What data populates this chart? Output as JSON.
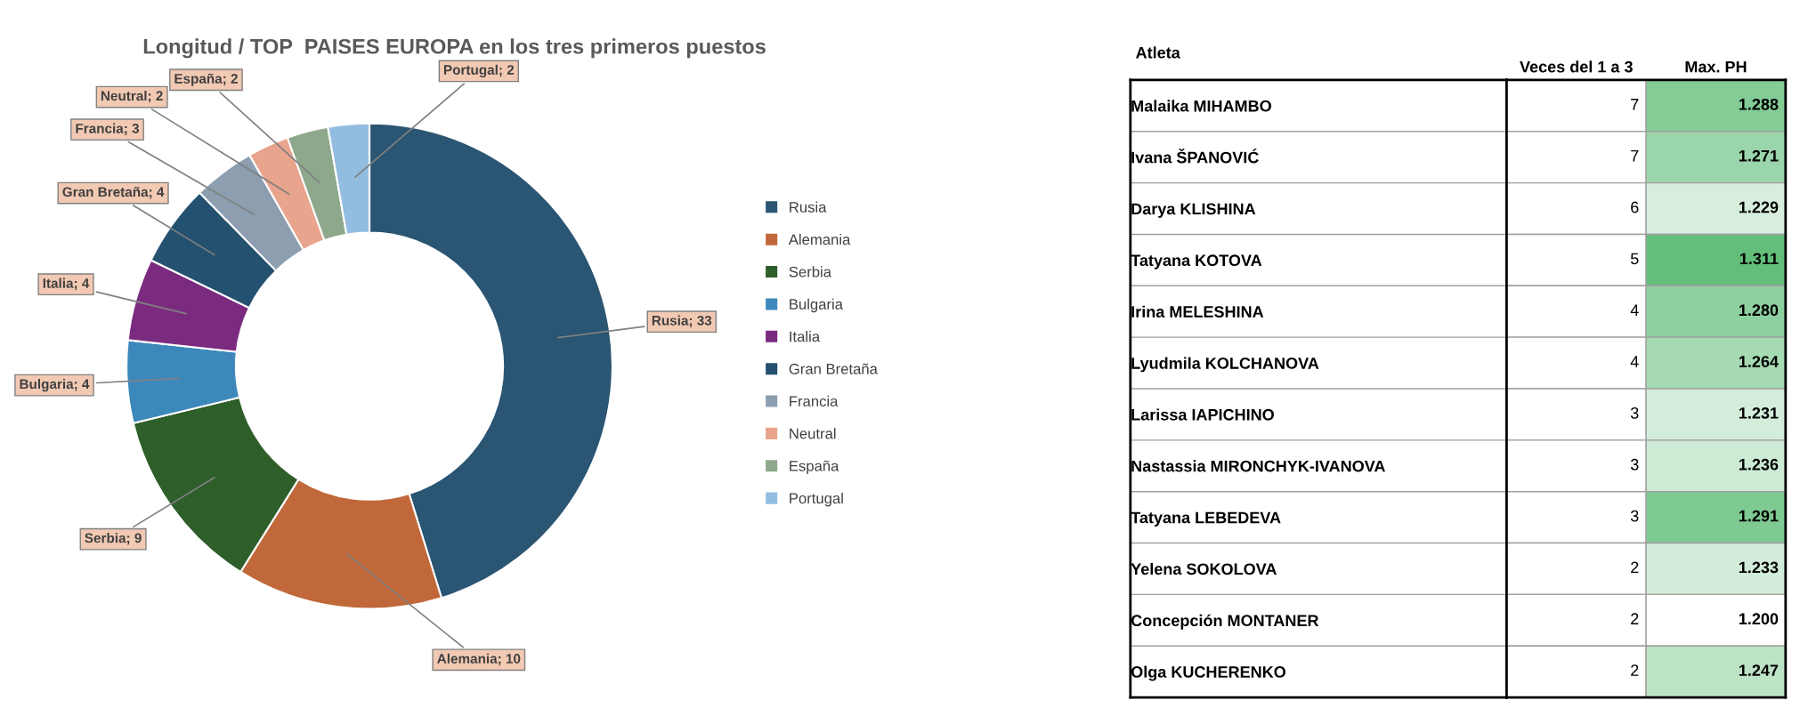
{
  "chart_data": [
    {
      "type": "donut",
      "title": "Longitud / TOP  PAISES EUROPA en los tres primeros puestos",
      "categories": [
        "Rusia",
        "Alemania",
        "Serbia",
        "Bulgaria",
        "Italia",
        "Gran Bretaña",
        "Francia",
        "Neutral",
        "España",
        "Portugal"
      ],
      "values": [
        33,
        10,
        9,
        4,
        4,
        4,
        3,
        2,
        2,
        2
      ],
      "colors": [
        "#2a5573",
        "#c0683a",
        "#2e5e29",
        "#3d88bb",
        "#7a2b80",
        "#255170",
        "#8c9eb0",
        "#e8a48c",
        "#8ea88c",
        "#93bde0"
      ],
      "value_labels": [
        "Rusia; 33",
        "Alemania; 10",
        "Serbia; 9",
        "Bulgaria; 4",
        "Italia; 4",
        "Gran Bretaña; 4",
        "Francia; 3",
        "Neutral; 2",
        "España; 2",
        "Portugal; 2"
      ],
      "legend": "right"
    },
    {
      "type": "heatmap",
      "ylabel": "Atleta",
      "categories": [
        "Veces del 1 a 3",
        "Max. PH"
      ],
      "y_categories": [
        "Malaika MIHAMBO",
        "Ivana ŠPANOVIĆ",
        "Darya KLISHINA",
        "Tatyana KOTOVA",
        "Irina MELESHINA",
        "Lyudmila KOLCHANOVA",
        "Larissa IAPICHINO",
        "Nastassia MIRONCHYK-IVANOVA",
        "Tatyana LEBEDEVA",
        "Yelena SOKOLOVA",
        "Concepción MONTANER",
        "Olga KUCHERENKO"
      ],
      "cells": [
        [
          7,
          1.288
        ],
        [
          7,
          1.271
        ],
        [
          6,
          1.229
        ],
        [
          5,
          1.311
        ],
        [
          4,
          1.28
        ],
        [
          4,
          1.264
        ],
        [
          3,
          1.231
        ],
        [
          3,
          1.236
        ],
        [
          3,
          1.291
        ],
        [
          2,
          1.233
        ],
        [
          2,
          1.2
        ],
        [
          2,
          1.247
        ]
      ],
      "cell_labels": [
        [
          "7",
          "1.288"
        ],
        [
          "7",
          "1.271"
        ],
        [
          "6",
          "1.229"
        ],
        [
          "5",
          "1.311"
        ],
        [
          "4",
          "1.280"
        ],
        [
          "4",
          "1.264"
        ],
        [
          "3",
          "1.231"
        ],
        [
          "3",
          "1.236"
        ],
        [
          "3",
          "1.291"
        ],
        [
          "2",
          "1.233"
        ],
        [
          "2",
          "1.200"
        ],
        [
          "2",
          "1.247"
        ]
      ]
    }
  ]
}
